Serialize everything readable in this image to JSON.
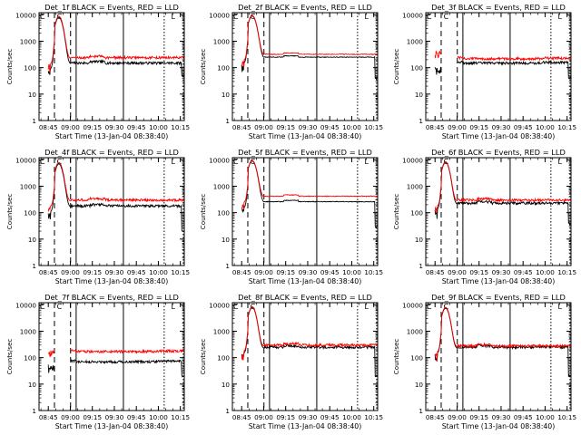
{
  "common": {
    "ylabel": "Counts/sec",
    "xlabel": "Start Time (13-Jan-04 08:38:40)",
    "xticks": [
      "08:45",
      "09:00",
      "09:15",
      "09:30",
      "09:45",
      "10:00",
      "10:15"
    ],
    "xtick_minutes": [
      6.33,
      21.33,
      36.33,
      51.33,
      66.33,
      81.33,
      96.33
    ],
    "yticks": [
      "1",
      "10",
      "100",
      "1000",
      "10000"
    ],
    "y_scale": "log",
    "ylim": [
      1,
      12000
    ],
    "xlim_minutes": [
      0,
      99
    ],
    "corner_marks": [
      "C",
      "C",
      "L"
    ],
    "colors": {
      "events": "#000000",
      "lld": "#ff0000"
    },
    "vertical_lines": [
      {
        "style": "dashed",
        "t": 10.5
      },
      {
        "style": "dashed",
        "t": 21.5
      },
      {
        "style": "solid",
        "t": 25.3
      },
      {
        "style": "solid",
        "t": 57.5
      },
      {
        "style": "dotted",
        "t": 85.3
      },
      {
        "style": "dotted",
        "t": 98.3
      }
    ]
  },
  "chart_data": [
    {
      "type": "line",
      "title": "Det_1f BLACK = Events, RED = LLD",
      "y_scale": "log",
      "ylim": [
        1,
        12000
      ],
      "series": [
        {
          "name": "Events",
          "color": "#000000",
          "shape": "peak",
          "base": 150,
          "peak": 8000,
          "gap_end": 50
        },
        {
          "name": "LLD",
          "color": "#ff0000",
          "shape": "peak",
          "base": 240,
          "peak": 8800
        }
      ]
    },
    {
      "type": "line",
      "title": "Det_2f BLACK = Events, RED = LLD",
      "y_scale": "log",
      "ylim": [
        1,
        12000
      ],
      "series": [
        {
          "name": "Events",
          "color": "#000000",
          "shape": "peak_smooth",
          "base": 250,
          "peak": 9000,
          "gap_end": 40
        },
        {
          "name": "LLD",
          "color": "#ff0000",
          "shape": "peak_smooth",
          "base": 320,
          "peak": 9500
        }
      ]
    },
    {
      "type": "line",
      "title": "Det_3f BLACK = Events, RED = LLD",
      "y_scale": "log",
      "ylim": [
        1,
        12000
      ],
      "series": [
        {
          "name": "Events",
          "color": "#000000",
          "shape": "flat",
          "base": 150,
          "start": 100,
          "gap_end": 40
        },
        {
          "name": "LLD",
          "color": "#ff0000",
          "shape": "flat",
          "base": 220,
          "start": 400
        }
      ]
    },
    {
      "type": "line",
      "title": "Det_4f BLACK = Events, RED = LLD",
      "y_scale": "log",
      "ylim": [
        1,
        12000
      ],
      "series": [
        {
          "name": "Events",
          "color": "#000000",
          "shape": "peak",
          "base": 180,
          "peak": 7000,
          "gap_end": 20
        },
        {
          "name": "LLD",
          "color": "#ff0000",
          "shape": "peak",
          "base": 300,
          "peak": 8000
        }
      ]
    },
    {
      "type": "line",
      "title": "Det_5f BLACK = Events, RED = LLD",
      "y_scale": "log",
      "ylim": [
        1,
        12000
      ],
      "series": [
        {
          "name": "Events",
          "color": "#000000",
          "shape": "peak_smooth",
          "base": 260,
          "peak": 9000,
          "gap_end": 30
        },
        {
          "name": "LLD",
          "color": "#ff0000",
          "shape": "peak_smooth",
          "base": 420,
          "peak": 9500
        }
      ]
    },
    {
      "type": "line",
      "title": "Det_6f BLACK = Events, RED = LLD",
      "y_scale": "log",
      "ylim": [
        1,
        12000
      ],
      "series": [
        {
          "name": "Events",
          "color": "#000000",
          "shape": "peak",
          "base": 230,
          "peak": 8000,
          "gap_end": 40
        },
        {
          "name": "LLD",
          "color": "#ff0000",
          "shape": "peak",
          "base": 300,
          "peak": 8500
        }
      ]
    },
    {
      "type": "line",
      "title": "Det_7f BLACK = Events, RED = LLD",
      "y_scale": "log",
      "ylim": [
        1,
        12000
      ],
      "series": [
        {
          "name": "Events",
          "color": "#000000",
          "shape": "flat",
          "base": 70,
          "start": 50,
          "gap_end": 20
        },
        {
          "name": "LLD",
          "color": "#ff0000",
          "shape": "flat",
          "base": 170,
          "start": 180
        }
      ]
    },
    {
      "type": "line",
      "title": "Det_8f BLACK = Events, RED = LLD",
      "y_scale": "log",
      "ylim": [
        1,
        12000
      ],
      "series": [
        {
          "name": "Events",
          "color": "#000000",
          "shape": "peak",
          "base": 250,
          "peak": 8000,
          "gap_end": 20
        },
        {
          "name": "LLD",
          "color": "#ff0000",
          "shape": "peak",
          "base": 300,
          "peak": 8500
        }
      ]
    },
    {
      "type": "line",
      "title": "Det_9f BLACK = Events, RED = LLD",
      "y_scale": "log",
      "ylim": [
        1,
        12000
      ],
      "series": [
        {
          "name": "Events",
          "color": "#000000",
          "shape": "peak",
          "base": 250,
          "peak": 7500,
          "gap_end": 20
        },
        {
          "name": "LLD",
          "color": "#ff0000",
          "shape": "peak",
          "base": 280,
          "peak": 8000
        }
      ]
    }
  ]
}
